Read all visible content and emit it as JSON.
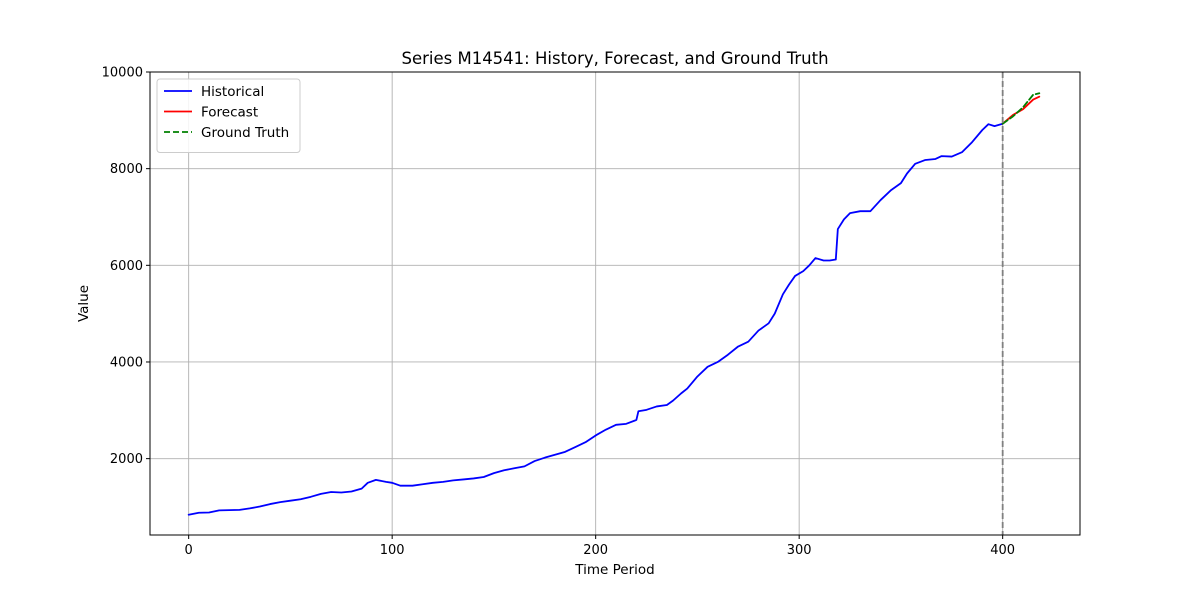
{
  "chart_data": {
    "type": "line",
    "title": "Series M14541: History, Forecast, and Ground Truth",
    "xlabel": "Time Period",
    "ylabel": "Value",
    "xlim": [
      -19,
      438
    ],
    "ylim": [
      420,
      10000
    ],
    "x_ticks": [
      0,
      100,
      200,
      300,
      400
    ],
    "y_ticks": [
      2000,
      4000,
      6000,
      8000,
      10000
    ],
    "grid": true,
    "legend_position": "top-left",
    "forecast_start_marker": 400,
    "series": [
      {
        "name": "Historical",
        "color": "#0000ff",
        "style": "solid",
        "points": [
          [
            0,
            840
          ],
          [
            5,
            880
          ],
          [
            10,
            885
          ],
          [
            15,
            930
          ],
          [
            20,
            935
          ],
          [
            25,
            940
          ],
          [
            30,
            970
          ],
          [
            35,
            1010
          ],
          [
            40,
            1060
          ],
          [
            45,
            1100
          ],
          [
            50,
            1130
          ],
          [
            55,
            1160
          ],
          [
            60,
            1210
          ],
          [
            65,
            1270
          ],
          [
            70,
            1310
          ],
          [
            75,
            1300
          ],
          [
            80,
            1320
          ],
          [
            85,
            1380
          ],
          [
            88,
            1500
          ],
          [
            92,
            1560
          ],
          [
            97,
            1520
          ],
          [
            100,
            1500
          ],
          [
            104,
            1440
          ],
          [
            110,
            1440
          ],
          [
            115,
            1470
          ],
          [
            120,
            1500
          ],
          [
            125,
            1520
          ],
          [
            130,
            1550
          ],
          [
            135,
            1570
          ],
          [
            140,
            1590
          ],
          [
            145,
            1620
          ],
          [
            150,
            1700
          ],
          [
            155,
            1760
          ],
          [
            160,
            1800
          ],
          [
            165,
            1840
          ],
          [
            170,
            1950
          ],
          [
            175,
            2020
          ],
          [
            180,
            2080
          ],
          [
            185,
            2140
          ],
          [
            190,
            2240
          ],
          [
            195,
            2340
          ],
          [
            200,
            2480
          ],
          [
            205,
            2600
          ],
          [
            210,
            2700
          ],
          [
            215,
            2720
          ],
          [
            220,
            2800
          ],
          [
            221,
            2980
          ],
          [
            225,
            3010
          ],
          [
            230,
            3080
          ],
          [
            235,
            3110
          ],
          [
            238,
            3200
          ],
          [
            242,
            3350
          ],
          [
            245,
            3450
          ],
          [
            250,
            3700
          ],
          [
            255,
            3900
          ],
          [
            260,
            4000
          ],
          [
            265,
            4150
          ],
          [
            270,
            4320
          ],
          [
            275,
            4420
          ],
          [
            280,
            4650
          ],
          [
            285,
            4800
          ],
          [
            288,
            5000
          ],
          [
            292,
            5400
          ],
          [
            295,
            5600
          ],
          [
            298,
            5780
          ],
          [
            302,
            5880
          ],
          [
            305,
            6000
          ],
          [
            308,
            6150
          ],
          [
            312,
            6100
          ],
          [
            315,
            6100
          ],
          [
            318,
            6120
          ],
          [
            319,
            6750
          ],
          [
            322,
            6950
          ],
          [
            325,
            7080
          ],
          [
            330,
            7120
          ],
          [
            335,
            7120
          ],
          [
            340,
            7350
          ],
          [
            345,
            7550
          ],
          [
            350,
            7700
          ],
          [
            353,
            7900
          ],
          [
            357,
            8100
          ],
          [
            362,
            8180
          ],
          [
            367,
            8200
          ],
          [
            370,
            8260
          ],
          [
            375,
            8250
          ],
          [
            380,
            8340
          ],
          [
            385,
            8550
          ],
          [
            390,
            8800
          ],
          [
            393,
            8920
          ],
          [
            396,
            8880
          ],
          [
            400,
            8930
          ]
        ]
      },
      {
        "name": "Forecast",
        "color": "#ff0000",
        "style": "solid",
        "points": [
          [
            400,
            8930
          ],
          [
            405,
            9110
          ],
          [
            410,
            9230
          ],
          [
            415,
            9430
          ],
          [
            418,
            9490
          ]
        ]
      },
      {
        "name": "Ground Truth",
        "color": "#008000",
        "style": "dashed",
        "points": [
          [
            400,
            8930
          ],
          [
            405,
            9080
          ],
          [
            410,
            9270
          ],
          [
            415,
            9530
          ],
          [
            418,
            9560
          ]
        ]
      }
    ]
  }
}
